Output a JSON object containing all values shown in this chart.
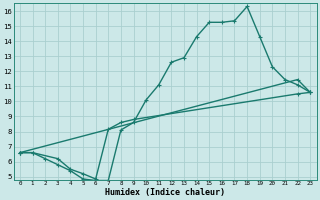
{
  "xlabel": "Humidex (Indice chaleur)",
  "bg_color": "#cce8e8",
  "grid_color": "#aacfcf",
  "line_color": "#1a7a6e",
  "xlim": [
    -0.5,
    23.5
  ],
  "ylim": [
    4.8,
    16.5
  ],
  "xticks": [
    0,
    1,
    2,
    3,
    4,
    5,
    6,
    7,
    8,
    9,
    10,
    11,
    12,
    13,
    14,
    15,
    16,
    17,
    18,
    19,
    20,
    21,
    22,
    23
  ],
  "yticks": [
    5,
    6,
    7,
    8,
    9,
    10,
    11,
    12,
    13,
    14,
    15,
    16
  ],
  "line1_x": [
    0,
    1,
    2,
    3,
    4,
    5,
    6,
    7,
    8,
    9,
    10,
    11,
    12,
    13,
    14,
    15,
    16,
    17,
    18,
    19,
    20,
    21,
    22,
    23
  ],
  "line1_y": [
    6.6,
    6.6,
    6.2,
    5.8,
    5.4,
    4.85,
    4.75,
    4.75,
    8.1,
    8.6,
    10.1,
    11.1,
    12.6,
    12.9,
    14.3,
    15.25,
    15.25,
    15.35,
    16.3,
    14.3,
    12.3,
    11.45,
    11.1,
    10.6
  ],
  "line2_x": [
    0,
    1,
    3,
    4,
    5,
    6,
    7,
    8,
    9,
    22,
    23
  ],
  "line2_y": [
    6.6,
    6.6,
    6.2,
    5.5,
    5.2,
    4.85,
    8.15,
    8.6,
    8.8,
    10.5,
    10.6
  ],
  "line3_x": [
    0,
    22,
    23
  ],
  "line3_y": [
    6.6,
    11.45,
    10.6
  ],
  "marker": "+",
  "markersize": 3.5,
  "linewidth": 1.0,
  "xlabel_fontsize": 6.0,
  "tick_fontsize_x": 4.2,
  "tick_fontsize_y": 5.2
}
